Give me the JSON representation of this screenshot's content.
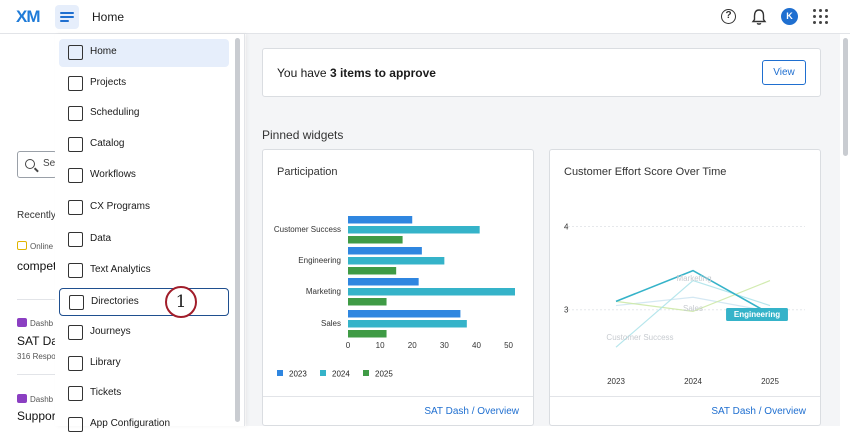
{
  "topbar": {
    "logo": "XM",
    "page_title": "Home",
    "help_glyph": "?",
    "avatar_initial": "K",
    "icons": [
      "menu-icon",
      "help-icon",
      "bell-icon",
      "apps-grid-icon"
    ]
  },
  "background": {
    "search_placeholder": "Se",
    "recent_heading": "Recently",
    "items": [
      {
        "tag": "Online",
        "title": "compet",
        "sub": ""
      },
      {
        "tag": "Dashb",
        "title": "SAT Da",
        "sub": "316 Respo"
      },
      {
        "tag": "Dashb",
        "title": "Suppor",
        "sub": ""
      }
    ]
  },
  "nav": {
    "items": [
      {
        "label": "Home",
        "icon": "home-icon",
        "active": true
      },
      {
        "label": "Projects",
        "icon": "projects-icon"
      },
      {
        "label": "Scheduling",
        "icon": "scheduling-icon"
      },
      {
        "label": "Catalog",
        "icon": "catalog-icon"
      },
      {
        "label": "Workflows",
        "icon": "workflows-icon"
      },
      {
        "label": "CX Programs",
        "icon": "cx-programs-icon"
      },
      {
        "label": "Data",
        "icon": "data-icon"
      },
      {
        "label": "Text Analytics",
        "icon": "text-analytics-icon"
      },
      {
        "label": "Directories",
        "icon": "directories-icon",
        "focused": true
      },
      {
        "label": "Journeys",
        "icon": "journeys-icon"
      },
      {
        "label": "Library",
        "icon": "library-icon"
      },
      {
        "label": "Tickets",
        "icon": "tickets-icon"
      },
      {
        "label": "App Configuration",
        "icon": "app-configuration-icon"
      }
    ],
    "step_marker": "1"
  },
  "main": {
    "approve_prefix": "You have ",
    "approve_bold": "3 items to approve",
    "view_label": "View",
    "pinned_title": "Pinned widgets"
  },
  "colors": {
    "brand": "#1f6fd0",
    "series_2023": "#2f86e0",
    "series_2024": "#35b3c9",
    "series_2025": "#3f9b45",
    "badge_ring": "#a11d2a"
  },
  "chart_data": [
    {
      "type": "bar",
      "orientation": "horizontal",
      "title": "Participation",
      "categories": [
        "Customer Success",
        "Engineering",
        "Marketing",
        "Sales"
      ],
      "series": [
        {
          "name": "2023",
          "values": [
            20,
            23,
            22,
            35
          ]
        },
        {
          "name": "2024",
          "values": [
            41,
            30,
            52,
            37
          ]
        },
        {
          "name": "2025",
          "values": [
            17,
            15,
            12,
            12
          ]
        }
      ],
      "xticks": [
        0,
        10,
        20,
        30,
        40,
        50
      ],
      "xlim": [
        0,
        52
      ],
      "legend": "bottom",
      "footer_link": "SAT Dash / Overview"
    },
    {
      "type": "line",
      "title": "Customer Effort Score Over Time",
      "x": [
        "2023",
        "2024",
        "2025"
      ],
      "yticks": [
        3,
        4
      ],
      "ylim": [
        2.3,
        4.15
      ],
      "series": [
        {
          "name": "Engineering",
          "values": [
            3.1,
            3.47,
            2.95
          ],
          "highlighted": true
        },
        {
          "name": "Marketing",
          "values": [
            2.55,
            3.35,
            3.05
          ]
        },
        {
          "name": "Sales",
          "values": [
            3.1,
            2.98,
            3.35
          ]
        },
        {
          "name": "Customer Success",
          "values": [
            3.05,
            3.15,
            2.98
          ]
        }
      ],
      "footer_link": "SAT Dash / Overview"
    }
  ]
}
